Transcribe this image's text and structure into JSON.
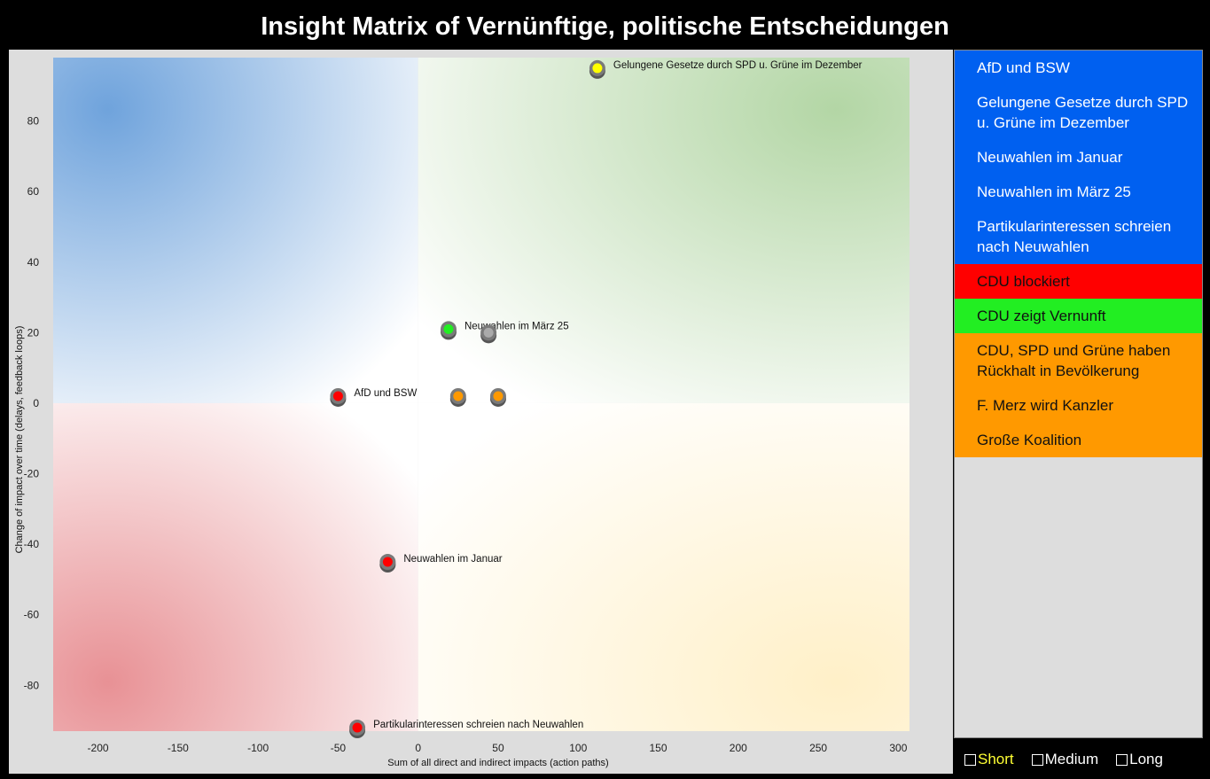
{
  "title": "Insight Matrix of Vernünftige, politische Entscheidungen",
  "chart_data": {
    "type": "scatter",
    "xlabel": "Sum of all direct and indirect impacts (action paths)",
    "ylabel": "Change of impact over time (delays, feedback loops)",
    "xlim": [
      -228,
      307
    ],
    "ylim": [
      -93,
      98
    ],
    "xticks": [
      -200,
      -150,
      -100,
      -50,
      0,
      50,
      100,
      150,
      200,
      250,
      300
    ],
    "yticks": [
      -80,
      -60,
      -40,
      -20,
      0,
      20,
      40,
      60,
      80
    ],
    "quadrant_colors": {
      "top_left": "#6fa3dc",
      "top_right": "#b5d8a8",
      "bottom_left": "#e89598",
      "bottom_right": "#fff0c8"
    },
    "points": [
      {
        "label": "Gelungene Gesetze durch SPD u. Grüne im Dezember",
        "x": 112,
        "y": 95,
        "color": "#ffff00"
      },
      {
        "label": "Neuwahlen im März 25",
        "x": 19,
        "y": 21,
        "color": "#22ee22"
      },
      {
        "label": "",
        "x": 44,
        "y": 20,
        "color": "#aaaaaa"
      },
      {
        "label": "AfD und BSW",
        "x": -50,
        "y": 2,
        "color": "#ff0000"
      },
      {
        "label": "",
        "x": 25,
        "y": 2,
        "color": "#ff9900"
      },
      {
        "label": "",
        "x": 50,
        "y": 2,
        "color": "#ff9900"
      },
      {
        "label": "Neuwahlen im Januar",
        "x": -19,
        "y": -45,
        "color": "#ff0000"
      },
      {
        "label": "Partikularinteressen schreien nach Neuwahlen",
        "x": -38,
        "y": -92,
        "color": "#ff0000"
      }
    ]
  },
  "legend": {
    "items": [
      {
        "label": "AfD und BSW",
        "color": "#0060f0",
        "dark": false
      },
      {
        "label": "Gelungene Gesetze durch SPD u. Grüne im Dezember",
        "color": "#0060f0",
        "dark": false
      },
      {
        "label": "Neuwahlen im Januar",
        "color": "#0060f0",
        "dark": false
      },
      {
        "label": "Neuwahlen im März 25",
        "color": "#0060f0",
        "dark": false
      },
      {
        "label": "Partikularinteressen schreien nach Neuwahlen",
        "color": "#0060f0",
        "dark": false
      },
      {
        "label": "CDU blockiert",
        "color": "#ff0000",
        "dark": true
      },
      {
        "label": "CDU zeigt Vernunft",
        "color": "#22ee22",
        "dark": true
      },
      {
        "label": "CDU, SPD und Grüne haben Rückhalt in Bevölkerung",
        "color": "#ff9900",
        "dark": true
      },
      {
        "label": "F. Merz wird Kanzler",
        "color": "#ff9900",
        "dark": true
      },
      {
        "label": "Große Koalition",
        "color": "#ff9900",
        "dark": true
      }
    ]
  },
  "filters": {
    "short": "Short",
    "medium": "Medium",
    "long": "Long"
  }
}
